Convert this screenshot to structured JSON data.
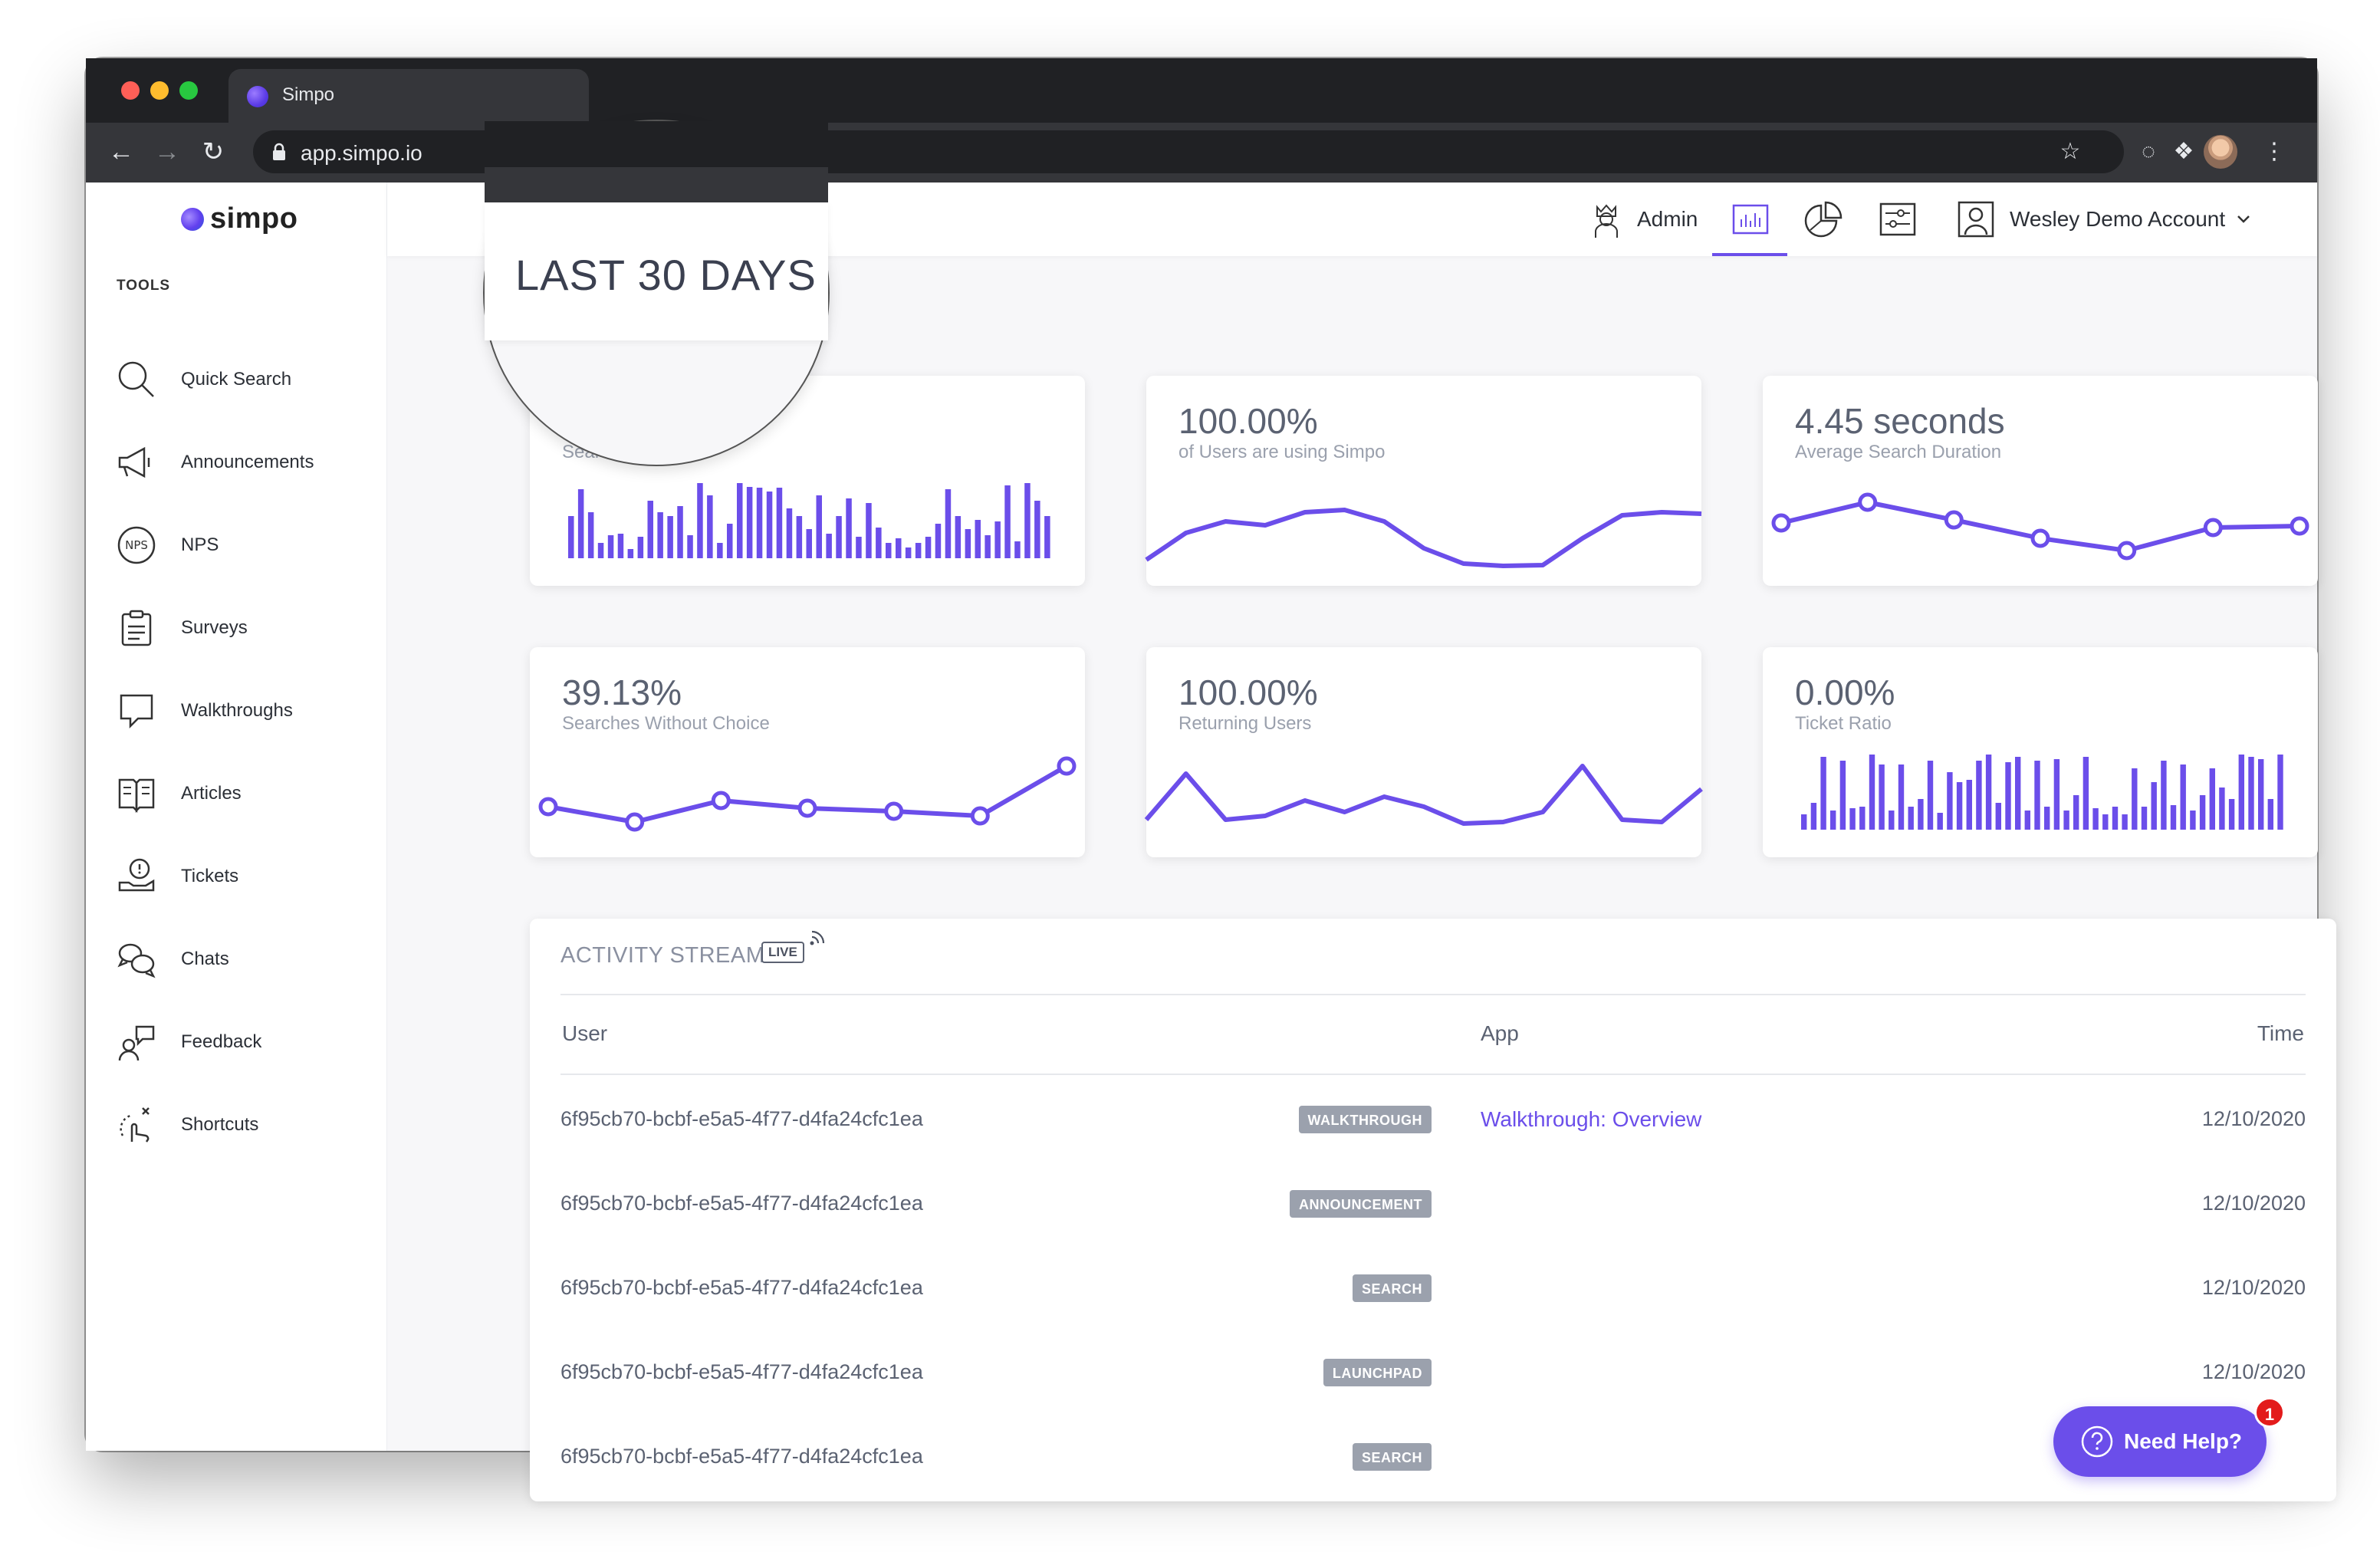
{
  "browser": {
    "tab_title": "Simpo",
    "url": "app.simpo.io"
  },
  "sidebar": {
    "brand": "simpo",
    "section_label": "TOOLS",
    "items": [
      {
        "label": "Quick Search",
        "icon": "search-icon"
      },
      {
        "label": "Announcements",
        "icon": "megaphone-icon"
      },
      {
        "label": "NPS",
        "icon": "nps-icon"
      },
      {
        "label": "Surveys",
        "icon": "clipboard-icon"
      },
      {
        "label": "Walkthroughs",
        "icon": "speech-bubble-icon"
      },
      {
        "label": "Articles",
        "icon": "book-icon"
      },
      {
        "label": "Tickets",
        "icon": "ticket-icon"
      },
      {
        "label": "Chats",
        "icon": "chat-bubbles-icon"
      },
      {
        "label": "Feedback",
        "icon": "feedback-icon"
      },
      {
        "label": "Shortcuts",
        "icon": "shortcut-icon"
      }
    ]
  },
  "header": {
    "admin_label": "Admin",
    "account_label": "Wesley Demo Account",
    "magnified_label": "LAST 30 DAYS"
  },
  "cards": [
    {
      "value": "",
      "label": "Sear",
      "chart": "bar",
      "series": [
        0.55,
        0.9,
        0.6,
        0.2,
        0.3,
        0.32,
        0.12,
        0.28,
        0.75,
        0.6,
        0.55,
        0.68,
        0.3,
        0.98,
        0.82,
        0.2,
        0.45,
        0.98,
        0.93,
        0.92,
        0.87,
        0.92,
        0.65,
        0.55,
        0.38,
        0.82,
        0.32,
        0.55,
        0.78,
        0.28,
        0.72,
        0.4,
        0.2,
        0.26,
        0.14,
        0.2,
        0.28,
        0.45,
        0.9,
        0.55,
        0.38,
        0.5,
        0.3,
        0.48,
        0.95,
        0.22,
        0.98,
        0.75,
        0.55
      ]
    },
    {
      "value": "100.00%",
      "label": "of Users are using Simpo",
      "chart": "line",
      "series": [
        0.1,
        0.45,
        0.6,
        0.55,
        0.72,
        0.75,
        0.6,
        0.25,
        0.05,
        0.02,
        0.03,
        0.38,
        0.68,
        0.72,
        0.7
      ]
    },
    {
      "value": "4.45 seconds",
      "label": "Average Search Duration",
      "chart": "line-dots",
      "series": [
        0.58,
        0.85,
        0.62,
        0.38,
        0.22,
        0.52,
        0.54
      ]
    },
    {
      "value": "39.13%",
      "label": "Searches Without Choice",
      "chart": "line-dots",
      "series": [
        0.42,
        0.22,
        0.5,
        0.4,
        0.36,
        0.3,
        0.95
      ]
    },
    {
      "value": "100.00%",
      "label": "Returning Users",
      "chart": "line",
      "series": [
        0.25,
        0.85,
        0.25,
        0.3,
        0.5,
        0.35,
        0.55,
        0.42,
        0.2,
        0.22,
        0.35,
        0.95,
        0.25,
        0.22,
        0.65
      ]
    },
    {
      "value": "0.00%",
      "label": "Ticket Ratio",
      "chart": "bar",
      "series": [
        0.2,
        0.35,
        0.95,
        0.25,
        0.9,
        0.28,
        0.3,
        0.98,
        0.85,
        0.25,
        0.85,
        0.3,
        0.4,
        0.9,
        0.22,
        0.75,
        0.62,
        0.65,
        0.9,
        0.98,
        0.35,
        0.88,
        0.95,
        0.25,
        0.9,
        0.3,
        0.92,
        0.25,
        0.45,
        0.95,
        0.28,
        0.2,
        0.3,
        0.2,
        0.8,
        0.3,
        0.62,
        0.9,
        0.32,
        0.85,
        0.25,
        0.45,
        0.8,
        0.55,
        0.4,
        0.98,
        0.95,
        0.92,
        0.4,
        0.98
      ]
    }
  ],
  "activity": {
    "title": "ACTIVITY STREAM",
    "live_label": "LIVE",
    "columns": {
      "user": "User",
      "app": "App",
      "time": "Time"
    },
    "rows": [
      {
        "user": "6f95cb70-bcbf-e5a5-4f77-d4fa24cfc1ea",
        "type": "WALKTHROUGH",
        "app": "Walkthrough: Overview",
        "time": "12/10/2020"
      },
      {
        "user": "6f95cb70-bcbf-e5a5-4f77-d4fa24cfc1ea",
        "type": "ANNOUNCEMENT",
        "app": "",
        "time": "12/10/2020"
      },
      {
        "user": "6f95cb70-bcbf-e5a5-4f77-d4fa24cfc1ea",
        "type": "SEARCH",
        "app": "",
        "time": "12/10/2020"
      },
      {
        "user": "6f95cb70-bcbf-e5a5-4f77-d4fa24cfc1ea",
        "type": "LAUNCHPAD",
        "app": "",
        "time": "12/10/2020"
      },
      {
        "user": "6f95cb70-bcbf-e5a5-4f77-d4fa24cfc1ea",
        "type": "SEARCH",
        "app": "",
        "time": ""
      }
    ]
  },
  "help": {
    "label": "Need Help?",
    "count": "1"
  },
  "colors": {
    "accent": "#6b4eea",
    "badge": "#9ba1ad",
    "alert": "#e31b1b"
  }
}
